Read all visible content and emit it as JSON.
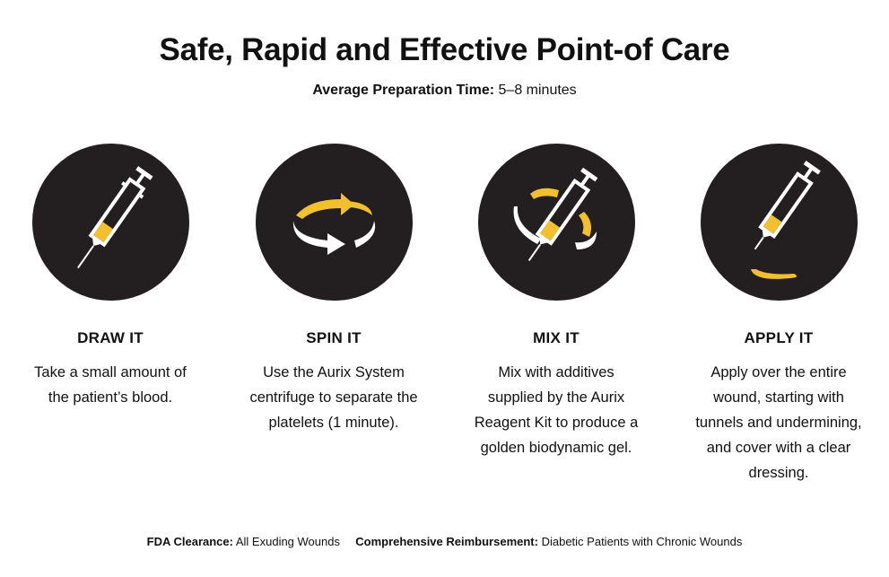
{
  "title": "Safe, Rapid and Effective Point-of Care",
  "subtitle": {
    "label": "Average Preparation Time:",
    "value": "5–8 minutes"
  },
  "accent_color": "#f2c02f",
  "circle_color": "#231f20",
  "steps": [
    {
      "icon": "syringe-icon",
      "title": "DRAW IT",
      "description": "Take a small amount of the patient’s blood."
    },
    {
      "icon": "spin-arrows-icon",
      "title": "SPIN IT",
      "description": "Use the Aurix System centrifuge to separate the platelets (1 minute)."
    },
    {
      "icon": "syringe-mix-icon",
      "title": "MIX IT",
      "description": "Mix with additives supplied by the Aurix Reagent Kit to produce a golden biodynamic gel."
    },
    {
      "icon": "syringe-apply-icon",
      "title": "APPLY IT",
      "description": "Apply over the entire wound, starting with tunnels and undermining, and cover with a clear dressing."
    }
  ],
  "footer": {
    "fda_label": "FDA Clearance:",
    "fda_value": "All Exuding Wounds",
    "reimb_label": "Comprehensive Reimbursement:",
    "reimb_value": "Diabetic Patients with Chronic Wounds"
  }
}
